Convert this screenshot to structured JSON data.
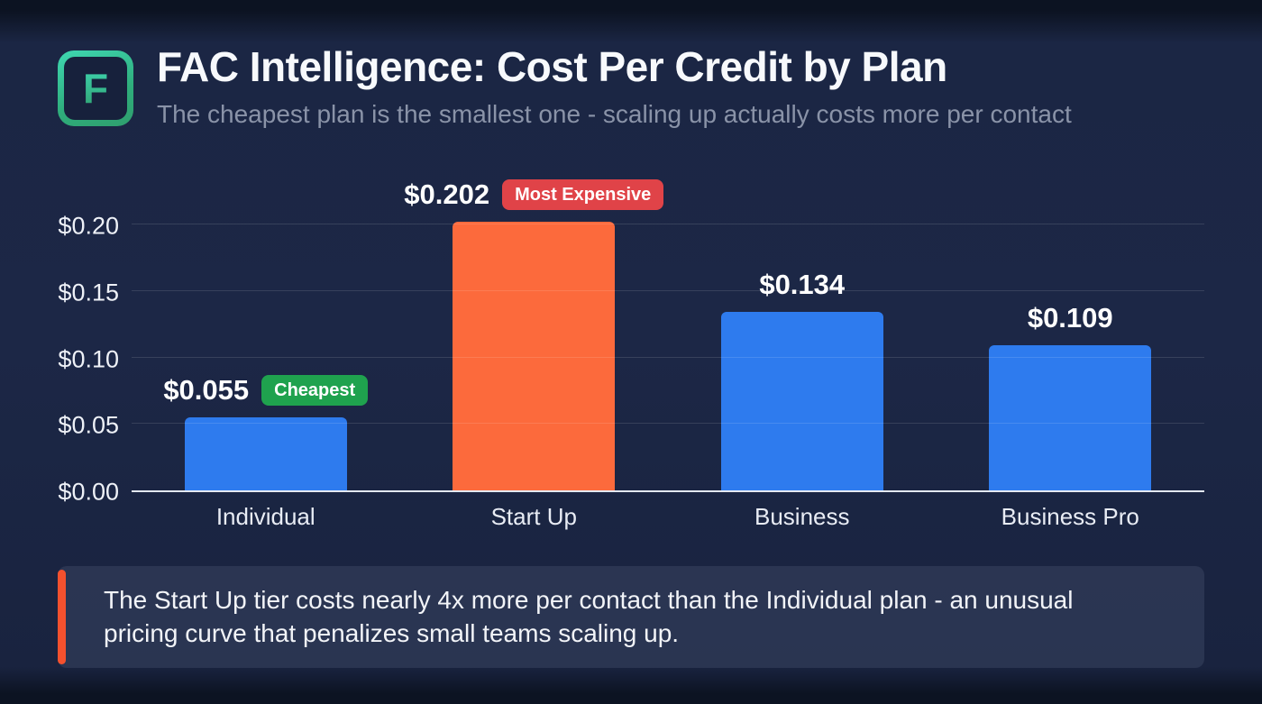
{
  "header": {
    "logo_letter": "F",
    "title": "FAC Intelligence: Cost Per Credit by Plan",
    "subtitle": "The cheapest plan is the smallest one - scaling up actually costs more per contact"
  },
  "chart_data": {
    "type": "bar",
    "title": "FAC Intelligence: Cost Per Credit by Plan",
    "subtitle": "The cheapest plan is the smallest one - scaling up actually costs more per contact",
    "categories": [
      "Individual",
      "Start Up",
      "Business",
      "Business Pro"
    ],
    "values": [
      0.055,
      0.202,
      0.134,
      0.109
    ],
    "xlabel": "",
    "ylabel": "",
    "ylim": [
      0,
      0.24
    ],
    "yticks": [
      0,
      0.05,
      0.1,
      0.15,
      0.2
    ],
    "ytick_labels": [
      "$0.00",
      "$0.05",
      "$0.10",
      "$0.15",
      "$0.20"
    ],
    "grid": true,
    "legend": false,
    "bars": [
      {
        "category": "Individual",
        "value": 0.055,
        "label": "$0.055",
        "color": "#2e7bee",
        "badge": "Cheapest",
        "badge_color": "#1fa24e"
      },
      {
        "category": "Start Up",
        "value": 0.202,
        "label": "$0.202",
        "color": "#fc6a3c",
        "badge": "Most Expensive",
        "badge_color": "#e04348"
      },
      {
        "category": "Business",
        "value": 0.134,
        "label": "$0.134",
        "color": "#2e7bee",
        "badge": null,
        "badge_color": null
      },
      {
        "category": "Business Pro",
        "value": 0.109,
        "label": "$0.109",
        "color": "#2e7bee",
        "badge": null,
        "badge_color": null
      }
    ]
  },
  "callout": {
    "text": "The Start Up tier costs nearly 4x more per contact than the Individual plan - an unusual pricing curve that penalizes small teams scaling up.",
    "accent_color": "#f4512e"
  },
  "colors": {
    "background": "#1b2644",
    "bar_blue": "#2e7bee",
    "bar_orange": "#fc6a3c",
    "badge_green": "#1fa24e",
    "badge_red": "#e04348",
    "logo_teal": "#3fd7b2",
    "logo_green": "#2f9e6e"
  }
}
